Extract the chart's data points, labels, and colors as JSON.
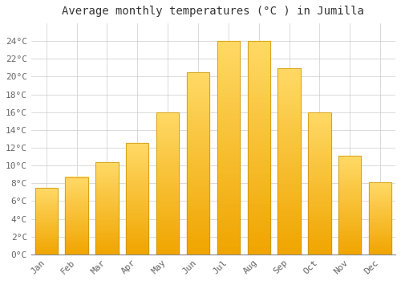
{
  "title": "Average monthly temperatures (°C ) in Jumilla",
  "months": [
    "Jan",
    "Feb",
    "Mar",
    "Apr",
    "May",
    "Jun",
    "Jul",
    "Aug",
    "Sep",
    "Oct",
    "Nov",
    "Dec"
  ],
  "values": [
    7.5,
    8.7,
    10.4,
    12.5,
    16.0,
    20.5,
    24.0,
    24.0,
    20.9,
    16.0,
    11.1,
    8.1
  ],
  "bar_color_top": "#FFD966",
  "bar_color_bottom": "#F0A500",
  "bar_edge_color": "#C8910A",
  "background_color": "#FFFFFF",
  "plot_bg_color": "#FFFFFF",
  "grid_color": "#CCCCCC",
  "text_color": "#666666",
  "title_color": "#333333",
  "ylim": [
    0,
    26
  ],
  "yticks": [
    0,
    2,
    4,
    6,
    8,
    10,
    12,
    14,
    16,
    18,
    20,
    22,
    24
  ],
  "title_fontsize": 10,
  "tick_fontsize": 8,
  "font_family": "monospace",
  "figsize": [
    5.0,
    3.5
  ],
  "dpi": 100
}
